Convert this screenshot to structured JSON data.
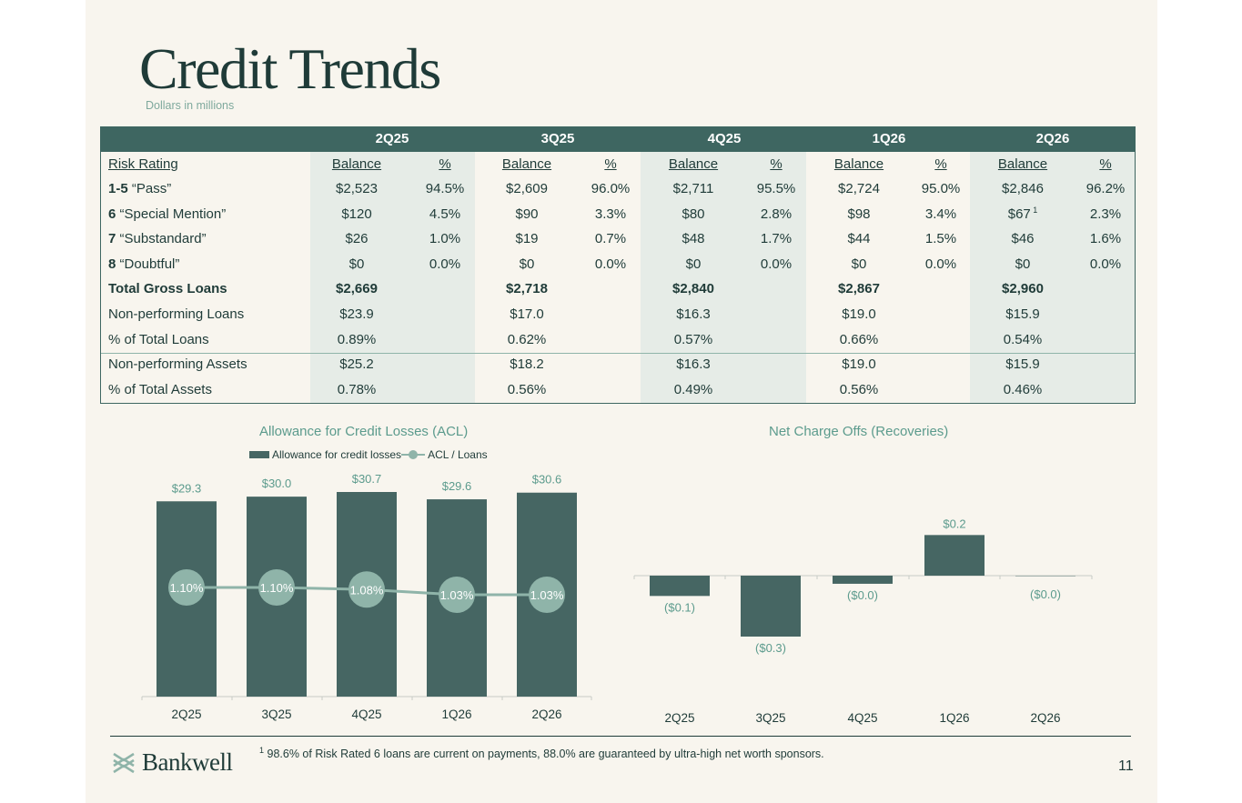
{
  "header": {
    "title": "Credit Trends",
    "subtitle": "Dollars in millions"
  },
  "table": {
    "quarters": [
      "2Q25",
      "3Q25",
      "4Q25",
      "1Q26",
      "2Q26"
    ],
    "subheaders": {
      "rating": "Risk Rating",
      "balance": "Balance",
      "pct": "%"
    },
    "rows": [
      {
        "label_num": "1-5",
        "label_text": " “Pass”",
        "values": [
          [
            "$2,523",
            "94.5%"
          ],
          [
            "$2,609",
            "96.0%"
          ],
          [
            "$2,711",
            "95.5%"
          ],
          [
            "$2,724",
            "95.0%"
          ],
          [
            "$2,846",
            "96.2%"
          ]
        ]
      },
      {
        "label_num": "6",
        "label_text": " “Special Mention”",
        "values": [
          [
            "$120",
            "4.5%"
          ],
          [
            "$90",
            "3.3%"
          ],
          [
            "$80",
            "2.8%"
          ],
          [
            "$98",
            "3.4%"
          ],
          [
            "$67",
            "2.3%"
          ]
        ]
      },
      {
        "label_num": "7",
        "label_text": " “Substandard”",
        "values": [
          [
            "$26",
            "1.0%"
          ],
          [
            "$19",
            "0.7%"
          ],
          [
            "$48",
            "1.7%"
          ],
          [
            "$44",
            "1.5%"
          ],
          [
            "$46",
            "1.6%"
          ]
        ]
      },
      {
        "label_num": "8",
        "label_text": " “Doubtful”",
        "values": [
          [
            "$0",
            "0.0%"
          ],
          [
            "$0",
            "0.0%"
          ],
          [
            "$0",
            "0.0%"
          ],
          [
            "$0",
            "0.0%"
          ],
          [
            "$0",
            "0.0%"
          ]
        ]
      }
    ],
    "footnote_ref": "1",
    "total_label": "Total Gross Loans",
    "totals": [
      "$2,669",
      "$2,718",
      "$2,840",
      "$2,867",
      "$2,960"
    ],
    "summary": [
      {
        "label": "Non-performing Loans",
        "values": [
          "$23.9",
          "$17.0",
          "$16.3",
          "$19.0",
          "$15.9"
        ]
      },
      {
        "label": "% of Total Loans",
        "values": [
          "0.89%",
          "0.62%",
          "0.57%",
          "0.66%",
          "0.54%"
        ]
      },
      {
        "label": "Non-performing Assets",
        "values": [
          "$25.2",
          "$18.2",
          "$16.3",
          "$19.0",
          "$15.9"
        ]
      },
      {
        "label": "% of Total Assets",
        "values": [
          "0.78%",
          "0.56%",
          "0.49%",
          "0.56%",
          "0.46%"
        ]
      }
    ]
  },
  "chart_data": [
    {
      "type": "bar",
      "title": "Allowance for Credit Losses (ACL)",
      "categories": [
        "2Q25",
        "3Q25",
        "4Q25",
        "1Q26",
        "2Q26"
      ],
      "series": [
        {
          "name": "Allowance for credit losses",
          "values": [
            29.3,
            30.0,
            30.7,
            29.6,
            30.6
          ],
          "labels": [
            "$29.3",
            "$30.0",
            "$30.7",
            "$29.6",
            "$30.6"
          ],
          "color": "#466663"
        },
        {
          "name": "ACL / Loans",
          "type": "line",
          "values": [
            1.1,
            1.1,
            1.08,
            1.03,
            1.03
          ],
          "labels": [
            "1.10%",
            "1.10%",
            "1.08%",
            "1.03%",
            "1.03%"
          ],
          "color": "#8fb4a9"
        }
      ],
      "legend": "top",
      "grid": false
    },
    {
      "type": "bar",
      "title": "Net Charge Offs (Recoveries)",
      "categories": [
        "2Q25",
        "3Q25",
        "4Q25",
        "1Q26",
        "2Q26"
      ],
      "series": [
        {
          "values": [
            -0.1,
            -0.3,
            -0.04,
            0.2,
            -0.002
          ],
          "labels": [
            "($0.1)",
            "($0.3)",
            "($0.0)",
            "$0.2",
            "($0.0)"
          ],
          "color": "#466663"
        }
      ],
      "grid": false
    }
  ],
  "footer": {
    "footnote_num": "1",
    "footnote_text": "98.6% of Risk Rated 6 loans are current on payments, 88.0% are guaranteed by ultra-high net worth sponsors.",
    "logo_text": "Bankwell",
    "page_number": "11"
  },
  "colors": {
    "dark_teal": "#3e6661",
    "bar": "#466663",
    "accent": "#5c9b8d",
    "light": "#8fb4a9",
    "background": "#f8f5ee"
  }
}
